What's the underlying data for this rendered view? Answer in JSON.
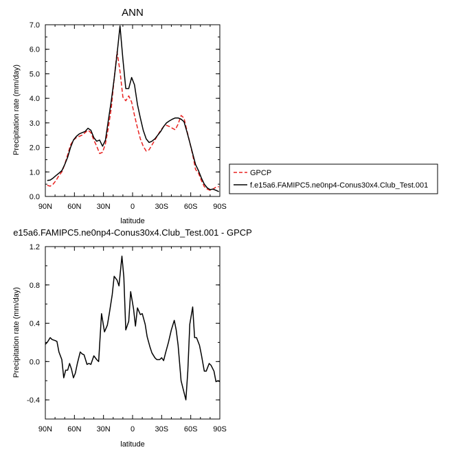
{
  "chart_data": [
    {
      "type": "line",
      "title": "ANN",
      "xlabel": "latitude",
      "ylabel": "Precipitation rate (mm/day)",
      "xlim": [
        90,
        -90
      ],
      "ylim": [
        0.0,
        7.0
      ],
      "xticks": [
        90,
        60,
        30,
        0,
        -30,
        -60,
        -90
      ],
      "xticklabels": [
        "90N",
        "60N",
        "30N",
        "0",
        "30S",
        "60S",
        "90S"
      ],
      "yticks": [
        0.0,
        1.0,
        2.0,
        3.0,
        4.0,
        5.0,
        6.0,
        7.0
      ],
      "yticklabels": [
        "0.0",
        "1.0",
        "2.0",
        "3.0",
        "4.0",
        "5.0",
        "6.0",
        "7.0"
      ],
      "legend_position": "outside-right",
      "series": [
        {
          "name": "GPCP",
          "color": "#e8201e",
          "dash": "dashed",
          "x": [
            88,
            85,
            82,
            79,
            76,
            73,
            70,
            67,
            64,
            61,
            58,
            55,
            52,
            49,
            46,
            43,
            40,
            37,
            34,
            31,
            28,
            25,
            22,
            19,
            16,
            13,
            10,
            7,
            4,
            1,
            -2,
            -5,
            -8,
            -11,
            -14,
            -17,
            -20,
            -23,
            -26,
            -29,
            -32,
            -35,
            -38,
            -41,
            -44,
            -47,
            -50,
            -53,
            -56,
            -59,
            -62,
            -65,
            -68,
            -71,
            -74,
            -77,
            -80,
            -83,
            -86,
            -89
          ],
          "y": [
            0.45,
            0.42,
            0.5,
            0.65,
            0.85,
            1.0,
            1.3,
            1.7,
            2.1,
            2.3,
            2.4,
            2.45,
            2.5,
            2.6,
            2.7,
            2.6,
            2.3,
            2.05,
            1.75,
            1.8,
            2.15,
            2.8,
            3.6,
            4.8,
            5.9,
            5.1,
            4.05,
            3.9,
            4.1,
            3.85,
            3.3,
            2.8,
            2.35,
            2.05,
            1.85,
            1.9,
            2.1,
            2.3,
            2.5,
            2.7,
            2.85,
            2.9,
            2.85,
            2.78,
            2.72,
            2.95,
            3.3,
            3.2,
            2.7,
            2.2,
            1.7,
            1.1,
            0.95,
            0.65,
            0.4,
            0.3,
            0.25,
            0.3,
            0.38,
            0.4
          ]
        },
        {
          "name": "f.e15a6.FAMIPC5.ne0np4-Conus30x4.Club_Test.001",
          "color": "#000000",
          "dash": "solid",
          "x": [
            88,
            85,
            82,
            79,
            76,
            73,
            70,
            67,
            64,
            61,
            58,
            55,
            52,
            49,
            46,
            43,
            40,
            37,
            34,
            31,
            28,
            25,
            22,
            19,
            16,
            13,
            10,
            7,
            4,
            1,
            -2,
            -5,
            -8,
            -11,
            -14,
            -17,
            -20,
            -23,
            -26,
            -29,
            -32,
            -35,
            -38,
            -41,
            -44,
            -47,
            -50,
            -53,
            -56,
            -59,
            -62,
            -65,
            -68,
            -71,
            -74,
            -77,
            -80,
            -83,
            -86,
            -89
          ],
          "y": [
            0.65,
            0.67,
            0.75,
            0.85,
            0.95,
            1.05,
            1.3,
            1.6,
            2.0,
            2.3,
            2.45,
            2.55,
            2.6,
            2.65,
            2.78,
            2.7,
            2.4,
            2.25,
            2.3,
            2.05,
            2.3,
            3.1,
            3.9,
            4.8,
            5.8,
            6.95,
            5.6,
            4.4,
            4.4,
            4.85,
            4.55,
            3.75,
            3.2,
            2.7,
            2.35,
            2.2,
            2.25,
            2.35,
            2.5,
            2.65,
            2.85,
            3.0,
            3.08,
            3.15,
            3.2,
            3.2,
            3.15,
            3.05,
            2.65,
            2.2,
            1.75,
            1.3,
            1.05,
            0.75,
            0.5,
            0.35,
            0.28,
            0.3,
            0.25,
            0.2
          ]
        }
      ]
    },
    {
      "type": "line",
      "title": "e15a6.FAMIPC5.ne0np4-Conus30x4.Club_Test.001 - GPCP",
      "xlabel": "latitude",
      "ylabel": "Precipitation rate (mm/day)",
      "xlim": [
        90,
        -90
      ],
      "ylim": [
        -0.6,
        1.2
      ],
      "xticks": [
        90,
        60,
        30,
        0,
        -30,
        -60,
        -90
      ],
      "xticklabels": [
        "90N",
        "60N",
        "30N",
        "0",
        "30S",
        "60S",
        "90S"
      ],
      "yticks": [
        -0.4,
        0.0,
        0.4,
        0.8,
        1.2
      ],
      "yticklabels": [
        "-0.4",
        "0.0",
        "0.4",
        "0.8",
        "1.2"
      ],
      "series": [
        {
          "color": "#000000",
          "dash": "solid",
          "x": [
            90,
            88,
            85,
            83,
            80,
            78,
            76,
            73,
            71,
            69,
            67,
            65,
            63,
            61,
            59,
            57,
            54,
            52,
            50,
            47,
            45,
            43,
            40,
            37,
            35,
            32,
            29,
            26,
            24,
            21,
            19,
            16,
            14,
            11,
            9,
            7,
            4,
            2,
            -1,
            -3,
            -5,
            -8,
            -10,
            -13,
            -15,
            -18,
            -20,
            -23,
            -25,
            -28,
            -30,
            -32,
            -34,
            -37,
            -40,
            -43,
            -45,
            -47,
            -50,
            -52,
            -55,
            -57,
            -59,
            -62,
            -64,
            -66,
            -69,
            -71,
            -74,
            -76,
            -79,
            -81,
            -84,
            -86,
            -88,
            -90
          ],
          "y": [
            0.18,
            0.2,
            0.25,
            0.23,
            0.22,
            0.21,
            0.1,
            0.02,
            -0.17,
            -0.09,
            -0.09,
            -0.02,
            -0.08,
            -0.17,
            -0.12,
            -0.02,
            0.1,
            0.08,
            0.07,
            -0.03,
            -0.02,
            -0.03,
            0.06,
            0.02,
            0.0,
            0.5,
            0.31,
            0.38,
            0.5,
            0.7,
            0.89,
            0.85,
            0.79,
            1.1,
            0.88,
            0.33,
            0.42,
            0.73,
            0.55,
            0.37,
            0.56,
            0.49,
            0.5,
            0.39,
            0.26,
            0.15,
            0.09,
            0.04,
            0.02,
            0.02,
            0.04,
            0.01,
            0.09,
            0.2,
            0.33,
            0.43,
            0.33,
            0.17,
            -0.2,
            -0.28,
            -0.4,
            -0.1,
            0.39,
            0.57,
            0.25,
            0.25,
            0.17,
            0.07,
            -0.1,
            -0.1,
            -0.02,
            -0.04,
            -0.1,
            -0.21,
            -0.2,
            -0.21
          ]
        }
      ]
    }
  ]
}
